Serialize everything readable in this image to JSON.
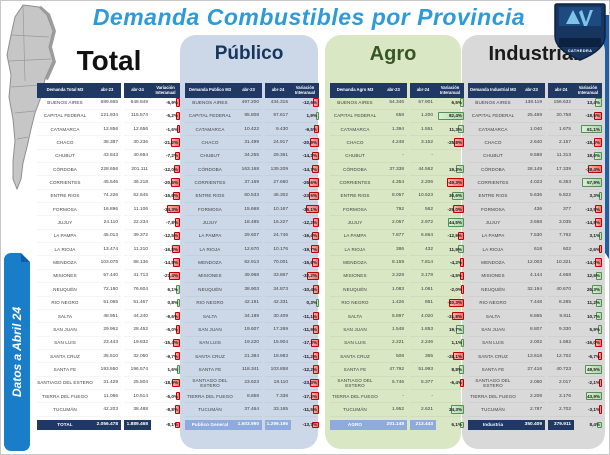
{
  "title": "Demanda Combustibles por Provincia",
  "sidebar": {
    "label": "Datos a Abril 24"
  },
  "logo": {
    "text": "CATHEDRA"
  },
  "colors": {
    "title_blue": "#2e9bd8",
    "header_navy": "#1f3864",
    "panel_publico": "#ccd8e8",
    "panel_agro": "#d9e7c5",
    "panel_industrial": "#d9d9d9",
    "footer_light_blue": "#8faadc",
    "bar_negative": "#f1706f",
    "bar_positive": "#aed7ab",
    "sidebar_blue": "#1a7dc8",
    "ribbon_blue": "#1f5fa8"
  },
  "header_labels": {
    "abr23": "abr-23",
    "abr24": "abr-24",
    "variacion": "Variación Interanual"
  },
  "tables": [
    {
      "id": "total",
      "title": "Total",
      "first_col": "Demanda Total M3",
      "rows": [
        [
          "BUENOS AIRES",
          "689.665",
          "648.849",
          "-5,9%"
        ],
        [
          "CAPITAL FEDERAL",
          "121.934",
          "115.574",
          "-5,2%"
        ],
        [
          "CATAMARCA",
          "12.856",
          "12.656",
          "-1,6%"
        ],
        [
          "CHACO",
          "38.387",
          "30.236",
          "-21,2%"
        ],
        [
          "CHUBUT",
          "43.843",
          "40.694",
          "-7,2%"
        ],
        [
          "CÓRDOBA",
          "228.656",
          "201.111",
          "-12,0%"
        ],
        [
          "CORRIENTES",
          "45.546",
          "36.218",
          "-20,5%"
        ],
        [
          "ENTRE RIOS",
          "74.226",
          "62.645",
          "-15,6%"
        ],
        [
          "FORMOSA",
          "16.896",
          "11.106",
          "-34,3%"
        ],
        [
          "JUJUY",
          "24.110",
          "22.234",
          "-7,8%"
        ],
        [
          "LA PAMPA",
          "45.013",
          "39.372",
          "-12,5%"
        ],
        [
          "LA RIOJA",
          "13.474",
          "11.210",
          "-16,8%"
        ],
        [
          "MENDOZA",
          "103.075",
          "88.136",
          "-14,5%"
        ],
        [
          "MISIONES",
          "57.440",
          "41.713",
          "-27,4%"
        ],
        [
          "NEUQUÉN",
          "72.180",
          "76.604",
          "6,1%"
        ],
        [
          "RIO NEGRO",
          "51.065",
          "51.467",
          "0,8%"
        ],
        [
          "SALTA",
          "48.951",
          "44.240",
          "-9,6%"
        ],
        [
          "SAN JUAN",
          "29.962",
          "28.452",
          "-5,0%"
        ],
        [
          "SAN LUIS",
          "23.443",
          "19.832",
          "-15,4%"
        ],
        [
          "SANTA CRUZ",
          "35.510",
          "32.050",
          "-9,7%"
        ],
        [
          "SANTA FE",
          "193.550",
          "196.574",
          "1,6%"
        ],
        [
          "SANTIAGO DEL ESTERO",
          "31.429",
          "25.504",
          "-18,9%"
        ],
        [
          "TIERRA DEL FUEGO",
          "11.066",
          "10.514",
          "-5,0%"
        ],
        [
          "TUCUMÁN",
          "42.203",
          "38.488",
          "-8,8%"
        ]
      ],
      "footer": [
        "TOTAL",
        "2.056.478",
        "1.889.468",
        "-8,1%"
      ],
      "footer_style": "dark"
    },
    {
      "id": "publico",
      "title": "Público",
      "first_col": "Demanda Publico M3",
      "rows": [
        [
          "BUENOS AIRES",
          "497.200",
          "434.315",
          "-12,6%"
        ],
        [
          "CAPITAL FEDERAL",
          "95.808",
          "97.617",
          "1,9%"
        ],
        [
          "CATAMARCA",
          "10.422",
          "9.430",
          "-9,5%"
        ],
        [
          "CHACO",
          "31.499",
          "24.917",
          "-20,9%"
        ],
        [
          "CHUBUT",
          "34.255",
          "29.361",
          "-14,3%"
        ],
        [
          "CÓRDOBA",
          "163.168",
          "139.209",
          "-14,7%"
        ],
        [
          "CORRIENTES",
          "37.169",
          "27.660",
          "-25,6%"
        ],
        [
          "ENTRE RIOS",
          "60.533",
          "46.302",
          "-23,5%"
        ],
        [
          "FORMOSA",
          "15.668",
          "10.167",
          "-35,1%"
        ],
        [
          "JUJUY",
          "18.485",
          "16.227",
          "-12,2%"
        ],
        [
          "LA PAMPA",
          "29.607",
          "24.746",
          "-16,4%"
        ],
        [
          "LA RIOJA",
          "12.670",
          "10.176",
          "-19,7%"
        ],
        [
          "MENDOZA",
          "82.913",
          "70.001",
          "-15,6%"
        ],
        [
          "MISIONES",
          "49.968",
          "33.867",
          "-32,2%"
        ],
        [
          "NEUQUÉN",
          "38.903",
          "34.873",
          "-10,4%"
        ],
        [
          "RIO NEGRO",
          "42.191",
          "42.331",
          "0,3%"
        ],
        [
          "SALTA",
          "34.189",
          "30.409",
          "-11,1%"
        ],
        [
          "SAN JUAN",
          "19.607",
          "17.269",
          "-11,9%"
        ],
        [
          "SAN LUIS",
          "19.220",
          "15.904",
          "-17,3%"
        ],
        [
          "SANTA CRUZ",
          "21.384",
          "18.983",
          "-11,2%"
        ],
        [
          "SANTA FE",
          "118.341",
          "103.858",
          "-12,2%"
        ],
        [
          "SANTIAGO DEL ESTERO",
          "23.623",
          "18.110",
          "-23,3%"
        ],
        [
          "TIERRA DEL FUEGO",
          "8.858",
          "7.338",
          "-17,2%"
        ],
        [
          "TUCUMÁN",
          "37.464",
          "33.165",
          "-11,5%"
        ]
      ],
      "footer": [
        "Publico General",
        "1.503.990",
        "1.299.195",
        "-13,7%"
      ],
      "footer_style": "light"
    },
    {
      "id": "agro",
      "title": "Agro",
      "first_col": "Demanda Agro M3",
      "rows": [
        [
          "BUENOS AIRES",
          "54.346",
          "57.901",
          "6,5%"
        ],
        [
          "CAPITAL FEDERAL",
          "658",
          "1.200",
          "82,4%"
        ],
        [
          "CATAMARCA",
          "1.394",
          "1.551",
          "11,3%"
        ],
        [
          "CHACO",
          "4.248",
          "3.152",
          "-25,8%"
        ],
        [
          "CHUBUT",
          "-",
          "-",
          ""
        ],
        [
          "CÓRDOBA",
          "37.338",
          "44.562",
          "19,3%"
        ],
        [
          "CORRIENTES",
          "4.354",
          "2.206",
          "-49,3%"
        ],
        [
          "ENTRE RIOS",
          "8.057",
          "10.523",
          "30,6%"
        ],
        [
          "FORMOSA",
          "792",
          "562",
          "-29,0%"
        ],
        [
          "JUJUY",
          "2.057",
          "2.972",
          "44,5%"
        ],
        [
          "LA PAMPA",
          "7.877",
          "6.864",
          "-12,9%"
        ],
        [
          "LA RIOJA",
          "386",
          "432",
          "11,9%"
        ],
        [
          "MENDOZA",
          "8.159",
          "7.814",
          "-4,2%"
        ],
        [
          "MISIONES",
          "3.328",
          "3.178",
          "-4,5%"
        ],
        [
          "NEUQUÉN",
          "1.083",
          "1.061",
          "-2,0%"
        ],
        [
          "RIO NEGRO",
          "1.426",
          "851",
          "-40,3%"
        ],
        [
          "SALTA",
          "5.897",
          "4.020",
          "-31,8%"
        ],
        [
          "SAN JUAN",
          "1.548",
          "1.853",
          "19,7%"
        ],
        [
          "SAN LUIS",
          "2.221",
          "2.246",
          "1,1%"
        ],
        [
          "SANTA CRUZ",
          "508",
          "365",
          "-28,1%"
        ],
        [
          "SANTA FE",
          "47.792",
          "51.993",
          "8,8%"
        ],
        [
          "SANTIAGO DEL ESTERO",
          "5.746",
          "5.377",
          "-6,4%"
        ],
        [
          "TIERRA DEL FUEGO",
          "-",
          "-",
          ""
        ],
        [
          "TUCUMÁN",
          "1.952",
          "2.621",
          "34,3%"
        ]
      ],
      "footer": [
        "AGRO",
        "201.148",
        "213.443",
        "6,1%"
      ],
      "footer_style": "light"
    },
    {
      "id": "industrial",
      "title": "Industrial",
      "first_col": "Demanda Industrial M3",
      "rows": [
        [
          "BUENOS AIRES",
          "138.119",
          "156.632",
          "13,4%"
        ],
        [
          "CAPITAL FEDERAL",
          "25.469",
          "20.758",
          "-18,5%"
        ],
        [
          "CATAMARCA",
          "1.040",
          "1.675",
          "61,1%"
        ],
        [
          "CHACO",
          "2.640",
          "2.157",
          "-18,3%"
        ],
        [
          "CHUBUT",
          "9.588",
          "11.313",
          "18,0%"
        ],
        [
          "CÓRDOBA",
          "28.149",
          "17.339",
          "-38,4%"
        ],
        [
          "CORRIENTES",
          "4.023",
          "6.353",
          "57,9%"
        ],
        [
          "ENTRE RIOS",
          "5.636",
          "5.822",
          "3,3%"
        ],
        [
          "FORMOSA",
          "436",
          "377",
          "-13,5%"
        ],
        [
          "JUJUY",
          "3.568",
          "3.035",
          "-14,9%"
        ],
        [
          "LA PAMPA",
          "7.530",
          "7.762",
          "3,1%"
        ],
        [
          "LA RIOJA",
          "618",
          "602",
          "-2,6%"
        ],
        [
          "MENDOZA",
          "12.003",
          "10.321",
          "-14,0%"
        ],
        [
          "MISIONES",
          "4.144",
          "4.668",
          "12,6%"
        ],
        [
          "NEUQUÉN",
          "32.194",
          "40.670",
          "26,3%"
        ],
        [
          "RIO NEGRO",
          "7.448",
          "8.285",
          "11,2%"
        ],
        [
          "SALTA",
          "8.865",
          "9.811",
          "10,7%"
        ],
        [
          "SAN JUAN",
          "8.807",
          "9.330",
          "5,9%"
        ],
        [
          "SAN LUIS",
          "2.002",
          "1.682",
          "-16,0%"
        ],
        [
          "SANTA CRUZ",
          "13.618",
          "12.702",
          "-6,7%"
        ],
        [
          "SANTA FE",
          "27.416",
          "40.723",
          "48,5%"
        ],
        [
          "SANTIAGO DEL ESTERO",
          "2.060",
          "2.017",
          "-2,1%"
        ],
        [
          "TIERRA DEL FUEGO",
          "2.208",
          "3.176",
          "43,9%"
        ],
        [
          "TUCUMÁN",
          "2.787",
          "2.702",
          "-3,1%"
        ]
      ],
      "footer": [
        "Industria",
        "350.409",
        "379.911",
        "8,4%"
      ],
      "footer_style": "dark"
    }
  ]
}
